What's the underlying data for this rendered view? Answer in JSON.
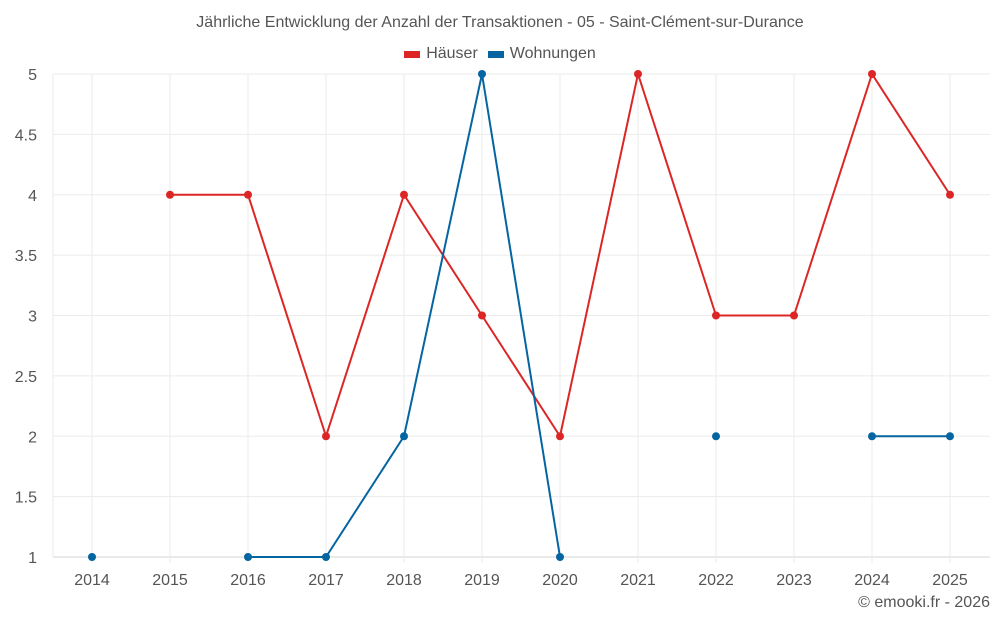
{
  "title": "Jährliche Entwicklung der Anzahl der Transaktionen - 05 - Saint-Clément-sur-Durance",
  "footer": "© emooki.fr - 2026",
  "legend": [
    {
      "label": "Häuser",
      "color": "#dc2626"
    },
    {
      "label": "Wohnungen",
      "color": "#0565a0"
    }
  ],
  "chart_data": {
    "type": "line",
    "title": "Jährliche Entwicklung der Anzahl der Transaktionen - 05 - Saint-Clément-sur-Durance",
    "xlabel": "",
    "ylabel": "",
    "categories": [
      "2014",
      "2015",
      "2016",
      "2017",
      "2018",
      "2019",
      "2020",
      "2021",
      "2022",
      "2023",
      "2024",
      "2025"
    ],
    "yticks": [
      "1",
      "1.5",
      "2",
      "2.5",
      "3",
      "3.5",
      "4",
      "4.5",
      "5"
    ],
    "ylim": [
      1,
      5
    ],
    "grid": true,
    "legend_position": "top",
    "series": [
      {
        "name": "Häuser",
        "color": "#dc2626",
        "values": [
          null,
          4,
          4,
          2,
          4,
          3,
          2,
          5,
          3,
          3,
          5,
          4
        ]
      },
      {
        "name": "Wohnungen",
        "color": "#0565a0",
        "values": [
          1,
          null,
          1,
          1,
          2,
          5,
          1,
          null,
          2,
          null,
          2,
          2
        ]
      }
    ]
  }
}
